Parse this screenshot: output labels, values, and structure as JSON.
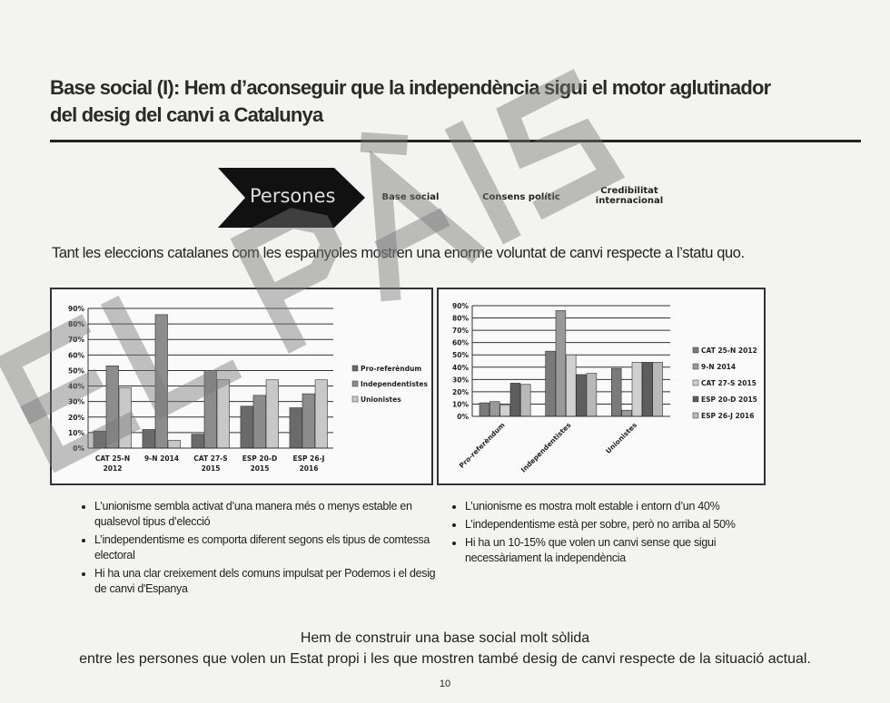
{
  "title": "Base social (I): Hem d’aconseguir que la independència sigui el motor aglutinador del desig del canvi a Catalunya",
  "title_line1": "Base social (I): Hem d’aconseguir que la independència sigui el motor aglutinador",
  "title_line2": "del desig del canvi a Catalunya",
  "process": {
    "active": "Persones",
    "steps": [
      "Base social",
      "Consens polític",
      "Credibilitat internacional"
    ]
  },
  "subtitle": "Tant les eleccions catalanes com les espanyoles mostren una enorme voluntat de canvi respecte a l’statu quo.",
  "chart_data": [
    {
      "type": "bar",
      "categories": [
        "CAT 25-N 2012",
        "9-N 2014",
        "CAT 27-S 2015",
        "ESP 20-D 2015",
        "ESP 26-J 2016"
      ],
      "series": [
        {
          "name": "Pro-referèndum",
          "values": [
            11,
            12,
            9,
            27,
            26
          ]
        },
        {
          "name": "Independentistes",
          "values": [
            53,
            86,
            50,
            34,
            35
          ]
        },
        {
          "name": "Unionistes",
          "values": [
            39,
            5,
            44,
            44,
            44
          ]
        }
      ],
      "ylim": [
        0,
        90
      ],
      "yticks": [
        "0%",
        "10%",
        "20%",
        "30%",
        "40%",
        "50%",
        "60%",
        "70%",
        "80%",
        "90%"
      ],
      "grid": true,
      "legend": "right",
      "colors": [
        "#6a6a6a",
        "#8c8c8c",
        "#c8c8c8"
      ]
    },
    {
      "type": "bar",
      "categories": [
        "Pro-referèndum",
        "Independentistes",
        "Unionistes"
      ],
      "series": [
        {
          "name": "CAT 25-N 2012",
          "values": [
            11,
            53,
            39
          ]
        },
        {
          "name": "9-N 2014",
          "values": [
            12,
            86,
            5
          ]
        },
        {
          "name": "CAT 27-S 2015",
          "values": [
            9,
            50,
            44
          ]
        },
        {
          "name": "ESP 20-D 2015",
          "values": [
            27,
            34,
            44
          ]
        },
        {
          "name": "ESP 26-J 2016",
          "values": [
            26,
            35,
            44
          ]
        }
      ],
      "ylim": [
        0,
        90
      ],
      "yticks": [
        "0%",
        "10%",
        "20%",
        "30%",
        "40%",
        "50%",
        "60%",
        "70%",
        "80%",
        "90%"
      ],
      "grid": true,
      "legend": "right",
      "colors": [
        "#7a7a7a",
        "#999999",
        "#d0d0d0",
        "#5e5e5e",
        "#b8b8b8"
      ]
    }
  ],
  "bullets_left": [
    "L’unionisme sembla activat d’una manera més o menys estable en qualsevol tipus d’elecció",
    "L’independentisme es comporta diferent segons els tipus de comtessa electoral",
    "Hi ha una clar creixement dels comuns impulsat per Podemos i el desig de canvi d'Espanya"
  ],
  "bullets_right": [
    "L’unionisme es mostra molt estable i entorn d’un 40%",
    "L’independentisme està per sobre, però no arriba al 50%",
    "Hi ha un 10-15% que volen un canvi sense que sigui necessàriament la independència"
  ],
  "conclusion_line1": "Hem de construir una base social molt sòlida",
  "conclusion_line2": "entre les persones que volen un Estat propi i les que mostren també desig de canvi respecte de la situació actual.",
  "page_number": "10",
  "watermark": "EL PAÍS"
}
